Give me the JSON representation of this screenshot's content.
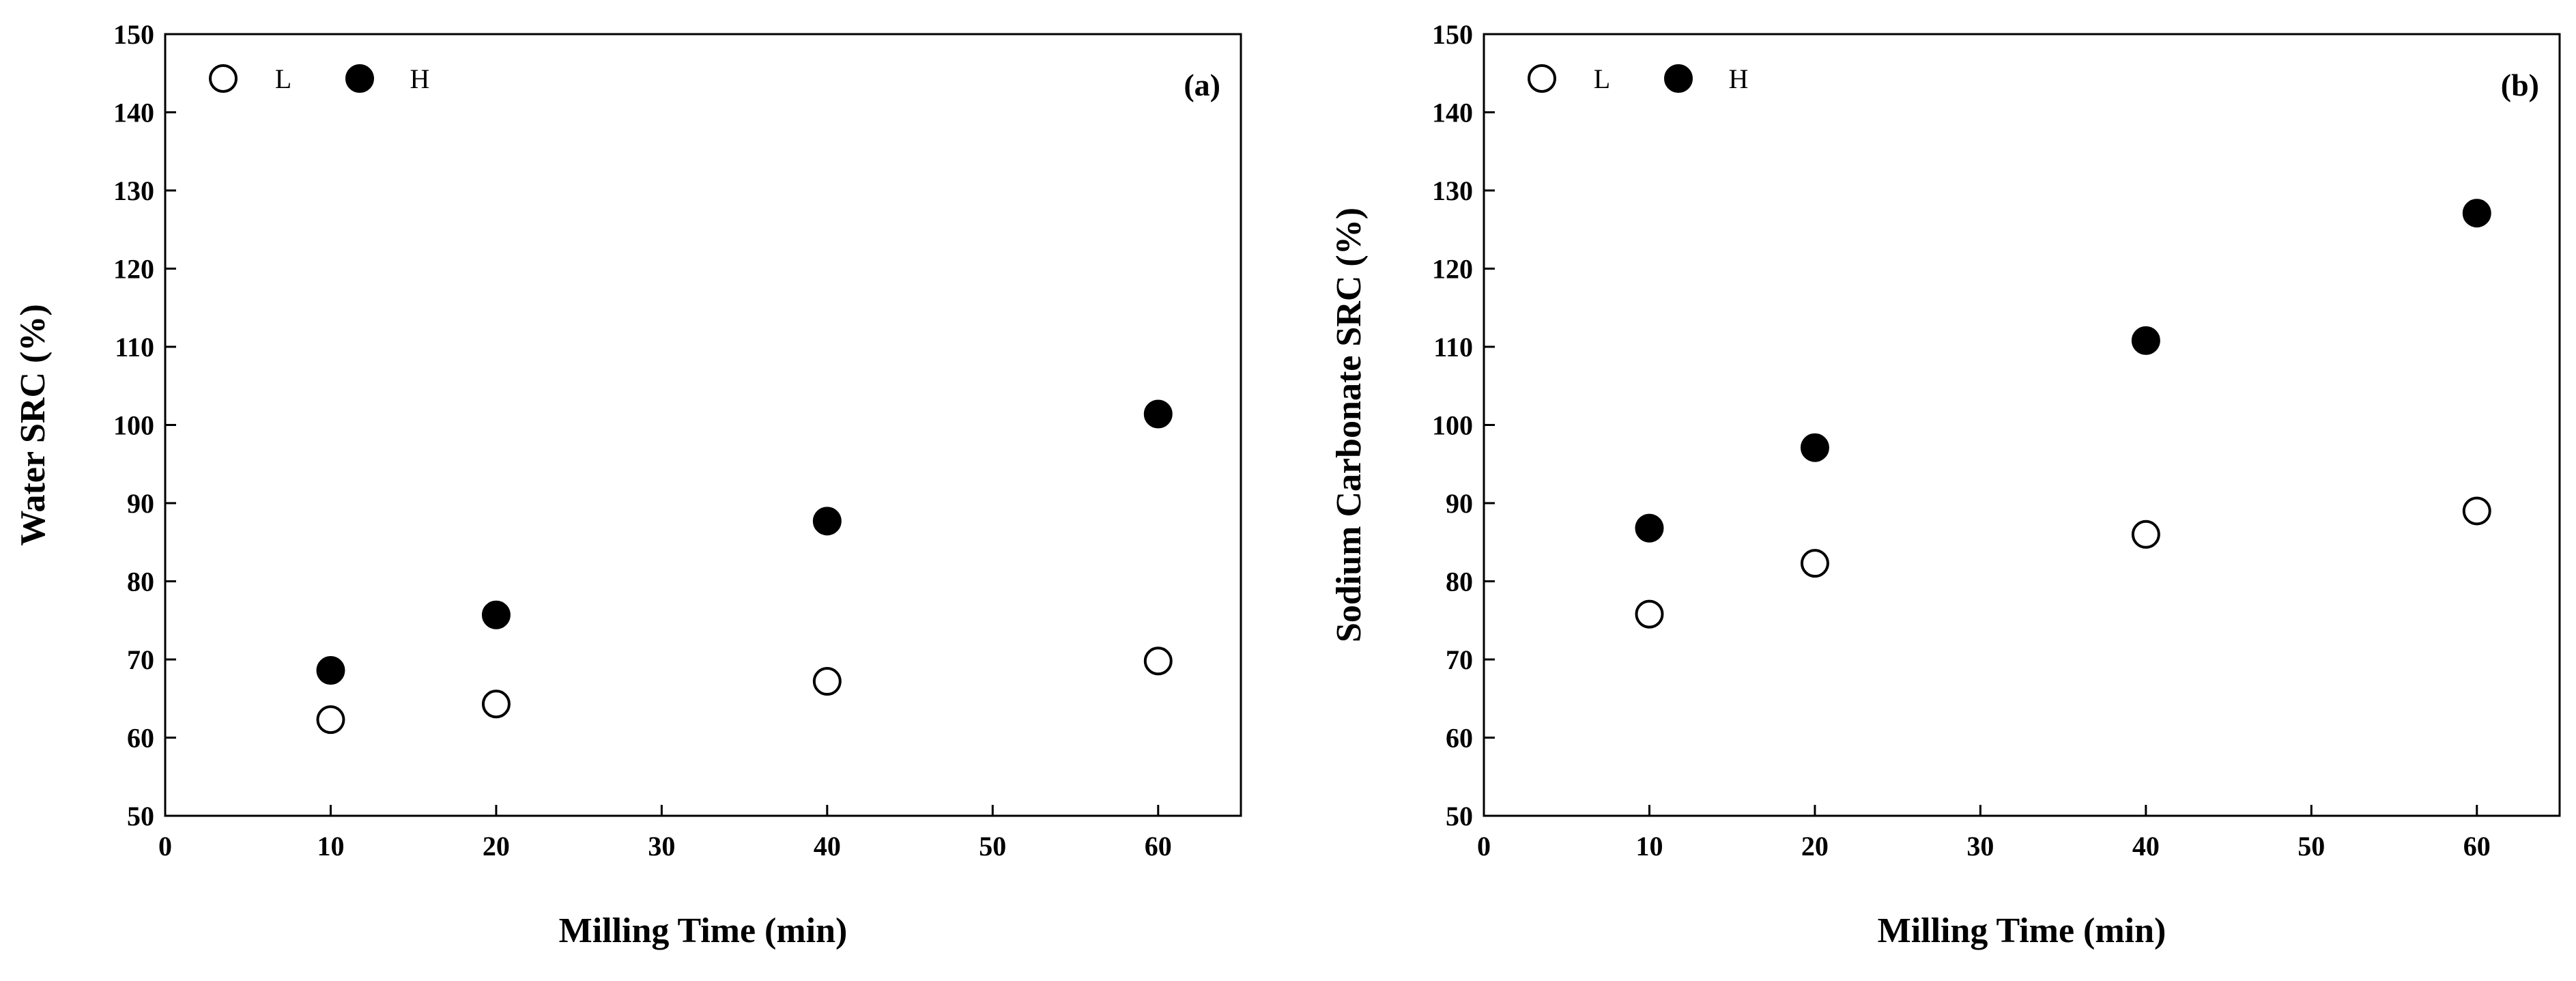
{
  "figure": {
    "charts": [
      {
        "panel_label": "(a)",
        "legend": [
          {
            "label": "L",
            "marker": "open-circle"
          },
          {
            "label": "H",
            "marker": "filled-circle"
          }
        ]
      },
      {
        "panel_label": "(b)",
        "legend": [
          {
            "label": "L",
            "marker": "open-circle"
          },
          {
            "label": "H",
            "marker": "filled-circle"
          }
        ]
      }
    ]
  },
  "chart_data": [
    {
      "type": "scatter",
      "panel": "(a)",
      "title": "",
      "xlabel": "Milling Time (min)",
      "ylabel": "Water SRC (%)",
      "xlim": [
        0,
        65
      ],
      "ylim": [
        50,
        150
      ],
      "xticks": [
        0,
        10,
        20,
        30,
        40,
        50,
        60
      ],
      "yticks": [
        50,
        60,
        70,
        80,
        90,
        100,
        110,
        120,
        130,
        140,
        150
      ],
      "grid": false,
      "legend_position": "top-left",
      "series": [
        {
          "name": "L",
          "marker": "open-circle",
          "x": [
            10,
            20,
            40,
            60
          ],
          "y": [
            62.3,
            64.3,
            67.2,
            69.8
          ]
        },
        {
          "name": "H",
          "marker": "filled-circle",
          "x": [
            10,
            20,
            40,
            60
          ],
          "y": [
            68.6,
            75.7,
            87.7,
            101.4
          ]
        }
      ]
    },
    {
      "type": "scatter",
      "panel": "(b)",
      "title": "",
      "xlabel": "Milling Time (min)",
      "ylabel": "Sodium Carbonate SRC (%)",
      "xlim": [
        0,
        65
      ],
      "ylim": [
        50,
        150
      ],
      "xticks": [
        0,
        10,
        20,
        30,
        40,
        50,
        60
      ],
      "yticks": [
        50,
        60,
        70,
        80,
        90,
        100,
        110,
        120,
        130,
        140,
        150
      ],
      "grid": false,
      "legend_position": "top-left",
      "series": [
        {
          "name": "L",
          "marker": "open-circle",
          "x": [
            10,
            20,
            40,
            60
          ],
          "y": [
            75.8,
            82.3,
            86.0,
            89.0
          ]
        },
        {
          "name": "H",
          "marker": "filled-circle",
          "x": [
            10,
            20,
            40,
            60
          ],
          "y": [
            86.8,
            97.1,
            110.8,
            127.1
          ]
        }
      ]
    }
  ]
}
